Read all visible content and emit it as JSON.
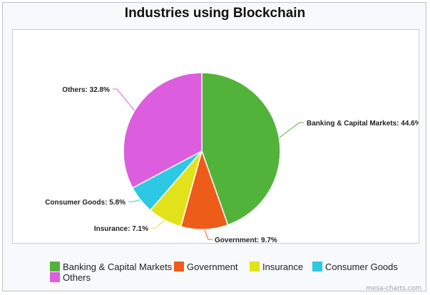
{
  "chart_data": {
    "type": "pie",
    "title": "Industries using Blockchain",
    "categories": [
      "Banking & Capital Markets",
      "Government",
      "Insurance",
      "Consumer Goods",
      "Others"
    ],
    "values": [
      44.6,
      9.7,
      7.1,
      5.8,
      32.8
    ],
    "data_labels": [
      "Banking & Capital Markets: 44.6%",
      "Government: 9.7%",
      "Insurance: 7.1%",
      "Consumer Goods: 5.8%",
      "Others: 32.8%"
    ],
    "colors": [
      "#52b33b",
      "#ee5c1a",
      "#e2e21a",
      "#2cc8e4",
      "#dd5ddf"
    ],
    "legend": {
      "placement": "bottom",
      "entries": [
        "Banking & Capital Markets",
        "Government",
        "Insurance",
        "Consumer Goods",
        "Others"
      ]
    }
  },
  "watermark": "mesa-charts.com"
}
